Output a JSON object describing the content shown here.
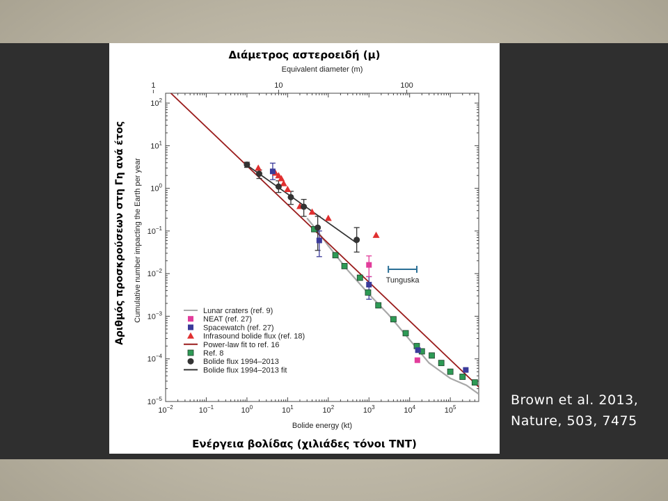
{
  "slide": {
    "top_title": "Διάμετρος αστεροειδή (μ)",
    "side_title": "Αριθμός προσκρούσεων στη Γη ανά έτος",
    "bottom_title": "Ενέργεια βολίδας (χιλιάδες τόνοι TNT)",
    "citation_line1": "Brown et al. 2013,",
    "citation_line2": "Nature, 503, 7475"
  },
  "colors": {
    "power_law": "#9a1c1c",
    "lunar": "#a8a8a8",
    "neat": "#e23c9b",
    "spacewatch": "#3a3a9a",
    "infrasound": "#e03030",
    "ref8": "#2e9a55",
    "bolide": "#333333",
    "tunguska": "#2a6f96"
  },
  "chart_data": {
    "type": "scatter",
    "xlabel": "Bolide energy (kt)",
    "ylabel": "Cumulative number impacting the Earth per year",
    "top_xlabel": "Equivalent diameter (m)",
    "x_log": true,
    "y_log": true,
    "xlim": [
      0.01,
      500000
    ],
    "ylim": [
      1e-05,
      170
    ],
    "x_ticks": [
      {
        "value": 0.01,
        "base": "10",
        "exp": "−2"
      },
      {
        "value": 0.1,
        "base": "10",
        "exp": "−1"
      },
      {
        "value": 1,
        "base": "10",
        "exp": "0"
      },
      {
        "value": 10,
        "base": "10",
        "exp": "1"
      },
      {
        "value": 100,
        "base": "10",
        "exp": "2"
      },
      {
        "value": 1000,
        "base": "10",
        "exp": "3"
      },
      {
        "value": 10000,
        "base": "10",
        "exp": "4"
      },
      {
        "value": 100000,
        "base": "10",
        "exp": "5"
      }
    ],
    "y_ticks": [
      {
        "value": 100,
        "base": "10",
        "exp": "2"
      },
      {
        "value": 10,
        "base": "10",
        "exp": "1"
      },
      {
        "value": 1,
        "base": "10",
        "exp": "0"
      },
      {
        "value": 0.1,
        "base": "10",
        "exp": "−1"
      },
      {
        "value": 0.01,
        "base": "10",
        "exp": "−2"
      },
      {
        "value": 0.001,
        "base": "10",
        "exp": "−3"
      },
      {
        "value": 0.0001,
        "base": "10",
        "exp": "−4"
      },
      {
        "value": 1e-05,
        "base": "10",
        "exp": "−5"
      }
    ],
    "top_ticks": [
      {
        "label": "1",
        "energy": 0.005
      },
      {
        "label": "10",
        "energy": 6.0
      },
      {
        "label": "100",
        "energy": 8500
      }
    ],
    "series": [
      {
        "name": "Lunar craters (ref. 9)",
        "kind": "line",
        "color_key": "lunar",
        "points": [
          [
            30,
            0.2
          ],
          [
            50,
            0.11
          ],
          [
            100,
            0.045
          ],
          [
            300,
            0.012
          ],
          [
            1000,
            0.0033
          ],
          [
            3000,
            0.0011
          ],
          [
            10000,
            0.00028
          ],
          [
            30000,
            8e-05
          ],
          [
            100000,
            3.5e-05
          ],
          [
            250000,
            2.4e-05
          ],
          [
            500000,
            1.5e-05
          ]
        ]
      },
      {
        "name": "Power-law fit to ref. 16",
        "kind": "line",
        "color_key": "power_law",
        "points": [
          [
            0.0135,
            170
          ],
          [
            500000,
            2.2e-05
          ]
        ]
      },
      {
        "name": "Bolide flux 1994–2013 fit",
        "kind": "line",
        "color_key": "bolide",
        "points": [
          [
            1,
            3.5
          ],
          [
            500,
            0.052
          ]
        ]
      },
      {
        "name": "NEAT (ref. 27)",
        "kind": "square",
        "color_key": "neat",
        "points": [
          [
            1000,
            0.016
          ],
          [
            15500,
            9.3e-05
          ]
        ]
      },
      {
        "name": "Spacewatch (ref. 27)",
        "kind": "square",
        "color_key": "spacewatch",
        "points": [
          [
            4.3,
            2.5
          ],
          [
            60,
            0.06
          ],
          [
            1000,
            0.0055
          ],
          [
            16000,
            0.00016
          ],
          [
            240000,
            5.5e-05
          ]
        ]
      },
      {
        "name": "Infrasound bolide flux (ref. 18)",
        "kind": "triangle",
        "color_key": "infrasound",
        "points": [
          [
            1.9,
            3.0
          ],
          [
            5,
            2.3
          ],
          [
            6,
            2.0
          ],
          [
            7,
            1.7
          ],
          [
            8,
            1.3
          ],
          [
            10,
            0.95
          ],
          [
            20,
            0.38
          ],
          [
            40,
            0.28
          ],
          [
            100,
            0.2
          ],
          [
            1500,
            0.08
          ]
        ]
      },
      {
        "name": "Ref. 8",
        "kind": "square",
        "color_key": "ref8",
        "points": [
          [
            45,
            0.11
          ],
          [
            150,
            0.027
          ],
          [
            250,
            0.015
          ],
          [
            600,
            0.008
          ],
          [
            950,
            0.0036
          ],
          [
            1700,
            0.0018
          ],
          [
            4000,
            0.00085
          ],
          [
            8000,
            0.0004
          ],
          [
            15000,
            0.0002
          ],
          [
            20000,
            0.00015
          ],
          [
            35000,
            0.00012
          ],
          [
            60000,
            8e-05
          ],
          [
            100000,
            5e-05
          ],
          [
            200000,
            3.8e-05
          ],
          [
            400000,
            2.8e-05
          ]
        ]
      },
      {
        "name": "Bolide flux 1994–2013",
        "kind": "circle",
        "color_key": "bolide",
        "points": [
          [
            1,
            3.6
          ],
          [
            2,
            2.2
          ],
          [
            6,
            1.1
          ],
          [
            12,
            0.62
          ],
          [
            25,
            0.37
          ],
          [
            55,
            0.12
          ],
          [
            500,
            0.062
          ]
        ]
      }
    ],
    "error_bars": [
      {
        "x": 1,
        "y_low": 3.1,
        "y_high": 4.1,
        "color_key": "bolide"
      },
      {
        "x": 2,
        "y_low": 1.7,
        "y_high": 2.7,
        "color_key": "bolide"
      },
      {
        "x": 6,
        "y_low": 0.8,
        "y_high": 1.5,
        "color_key": "bolide"
      },
      {
        "x": 12,
        "y_low": 0.42,
        "y_high": 0.85,
        "color_key": "bolide"
      },
      {
        "x": 25,
        "y_low": 0.22,
        "y_high": 0.55,
        "color_key": "bolide"
      },
      {
        "x": 55,
        "y_low": 0.035,
        "y_high": 0.22,
        "color_key": "bolide"
      },
      {
        "x": 500,
        "y_low": 0.032,
        "y_high": 0.12,
        "color_key": "bolide"
      },
      {
        "x": 4.3,
        "y_low": 1.6,
        "y_high": 3.9,
        "color_key": "spacewatch"
      },
      {
        "x": 60,
        "y_low": 0.025,
        "y_high": 0.1,
        "color_key": "spacewatch"
      },
      {
        "x": 1000,
        "y_low": 0.0025,
        "y_high": 0.0085,
        "color_key": "spacewatch"
      },
      {
        "x": 1000,
        "y_low": 0.0085,
        "y_high": 0.026,
        "color_key": "neat"
      }
    ],
    "annotation": {
      "label": "Tunguska",
      "x_min": 3000,
      "x_max": 15000,
      "y": 0.0126
    },
    "legend_placement": "bottom-left",
    "legend": [
      {
        "label": "Lunar craters (ref. 9)",
        "kind": "line",
        "color_key": "lunar"
      },
      {
        "label": "NEAT (ref. 27)",
        "kind": "square",
        "color_key": "neat"
      },
      {
        "label": "Spacewatch (ref. 27)",
        "kind": "square",
        "color_key": "spacewatch"
      },
      {
        "label": "Infrasound bolide flux (ref. 18)",
        "kind": "triangle",
        "color_key": "infrasound"
      },
      {
        "label": "Power-law fit to ref. 16",
        "kind": "line",
        "color_key": "power_law"
      },
      {
        "label": "Ref. 8",
        "kind": "square",
        "color_key": "ref8"
      },
      {
        "label": "Bolide flux 1994–2013",
        "kind": "circle",
        "color_key": "bolide"
      },
      {
        "label": "Bolide flux 1994–2013 fit",
        "kind": "line",
        "color_key": "bolide"
      }
    ]
  }
}
